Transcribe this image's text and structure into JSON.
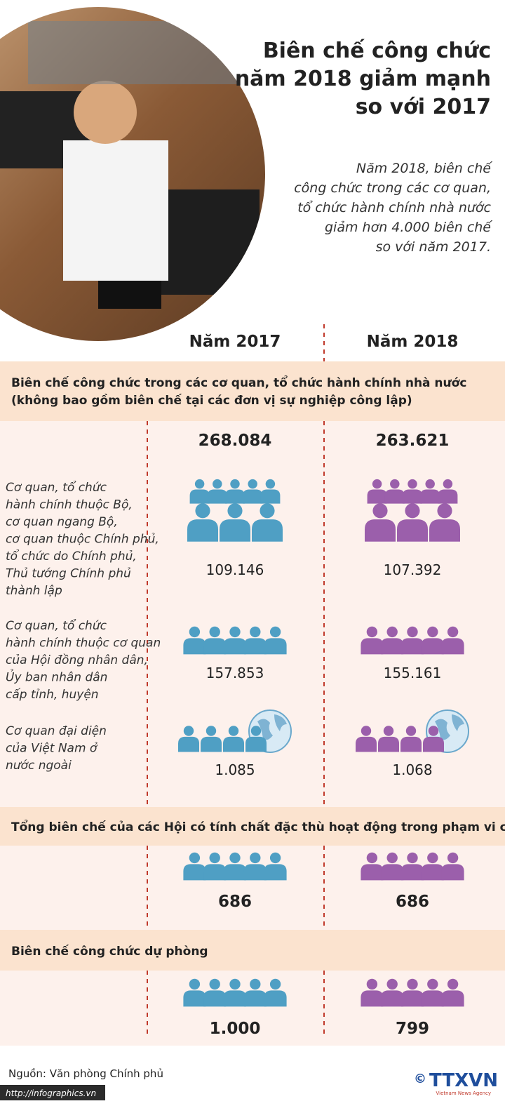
{
  "header": {
    "title": [
      "Biên chế công chức",
      "năm 2018 giảm mạnh",
      "so với 2017"
    ],
    "intro": [
      "Năm 2018, biên chế",
      "công chức trong các cơ quan,",
      "tổ chức hành chính nhà nước",
      "giảm hơn 4.000 biên chế",
      "so với năm 2017."
    ]
  },
  "columns": [
    "Năm 2017",
    "Năm 2018"
  ],
  "sections": [
    {
      "heading": [
        "Biên chế công chức trong các cơ quan, tổ chức hành chính nhà nước",
        "(không bao gồm biên chế tại các đơn vị sự nghiệp công lập)"
      ],
      "totals": [
        "268.084",
        "263.621"
      ],
      "rows": [
        {
          "label": [
            "Cơ quan, tổ chức",
            "hành chính thuộc Bộ,",
            "cơ quan ngang Bộ,",
            "cơ quan thuộc Chính phủ,",
            "tổ chức do Chính phủ,",
            "Thủ tướng Chính phủ",
            "thành lập"
          ],
          "values": [
            "109.146",
            "107.392"
          ]
        },
        {
          "label": [
            "Cơ quan, tổ chức",
            "hành chính thuộc cơ quan",
            "của Hội đồng nhân dân,",
            "Ủy ban nhân dân",
            "cấp tỉnh, huyện"
          ],
          "values": [
            "157.853",
            "155.161"
          ]
        },
        {
          "label": [
            "Cơ quan đại diện",
            "của Việt Nam ở",
            "nước ngoài"
          ],
          "values": [
            "1.085",
            "1.068"
          ]
        }
      ]
    },
    {
      "heading": [
        "Tổng biên chế của các Hội có tính chất đặc thù hoạt động trong phạm vi cả nước"
      ],
      "values": [
        "686",
        "686"
      ]
    },
    {
      "heading": [
        "Biên chế công chức dự phòng"
      ],
      "values": [
        "1.000",
        "799"
      ]
    }
  ],
  "footer": {
    "source": "Nguồn: Văn phòng Chính phủ",
    "url": "http://infographics.vn",
    "copyright": "©",
    "logo": "TTXVN",
    "agency": "Vietnam News Agency"
  }
}
